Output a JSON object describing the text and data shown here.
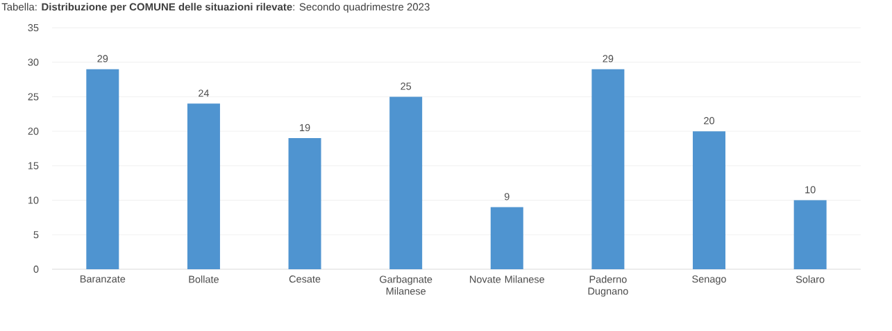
{
  "chart_data": {
    "type": "bar",
    "title": "Tabella: **Distribuzione per COMUNE delle situazioni rilevate**: Secondo quadrimestre 2023",
    "categories": [
      "Baranzate",
      "Bollate",
      "Cesate",
      "Garbagnate Milanese",
      "Novate Milanese",
      "Paderno Dugnano",
      "Senago",
      "Solaro"
    ],
    "values": [
      29,
      24,
      19,
      25,
      9,
      29,
      20,
      10
    ],
    "color": "#4f94d0",
    "ylim": [
      0,
      35
    ],
    "yticks": [
      0,
      5,
      10,
      15,
      20,
      25,
      30,
      35
    ],
    "grid": "y",
    "data_labels": true
  }
}
